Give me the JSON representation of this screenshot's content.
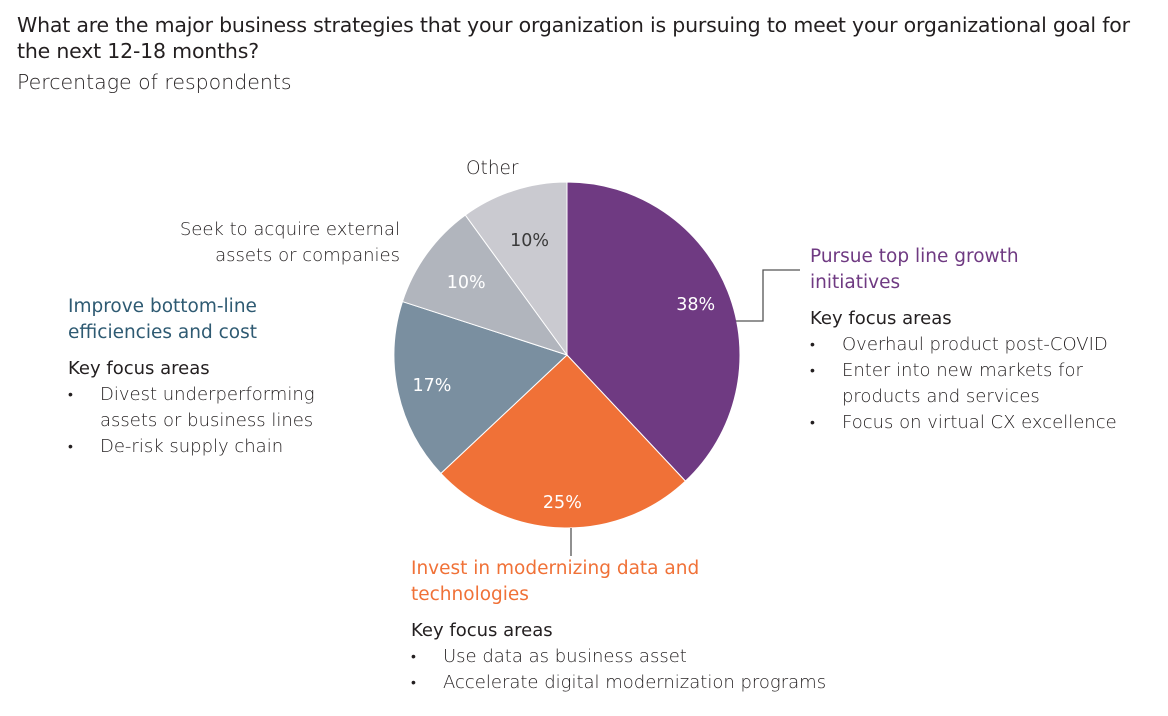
{
  "header": {
    "title": "What are the major business strategies that your organization is pursuing to meet your organizational goal for the next 12-18 months?",
    "subtitle": "Percentage of respondents"
  },
  "colors": {
    "purple": "#6f3a82",
    "orange": "#f07137",
    "slate": "#7a8fa0",
    "gray": "#b1b5bd",
    "light_gray": "#cacad0",
    "teal_heading": "#2e5a72"
  },
  "slices": [
    {
      "label": "Pursue top line growth initiatives",
      "pct_label": "38%"
    },
    {
      "label": "Invest in modernizing data and technologies",
      "pct_label": "25%"
    },
    {
      "label": "Improve bottom-line efficiencies and cost",
      "pct_label": "17%"
    },
    {
      "label": "Seek to acquire external assets or companies",
      "pct_label": "10%"
    },
    {
      "label": "Other",
      "pct_label": "10%"
    }
  ],
  "labels": {
    "other": "Other",
    "acquire_line1": "Seek to acquire external",
    "acquire_line2": "assets or companies"
  },
  "growth": {
    "heading_line1": "Pursue top line growth",
    "heading_line2": "initiatives",
    "kfa": "Key focus areas",
    "items": [
      "Overhaul product post-COVID",
      "Enter into new markets for products and services",
      "Focus on virtual CX excellence"
    ]
  },
  "bottomline": {
    "heading_line1": "Improve bottom-line",
    "heading_line2": "efficiencies and cost",
    "kfa": "Key focus areas",
    "items": [
      "Divest underperforming assets or business lines",
      "De-risk supply chain"
    ]
  },
  "modernize": {
    "heading_line1": "Invest in modernizing data and",
    "heading_line2": "technologies",
    "kfa": "Key focus areas",
    "items": [
      "Use data as business asset",
      "Accelerate digital modernization programs"
    ]
  },
  "chart_data": {
    "type": "pie",
    "title": "What are the major business strategies that your organization is pursuing to meet your organizational goal for the next 12-18 months?",
    "subtitle": "Percentage of respondents",
    "categories": [
      "Pursue top line growth initiatives",
      "Invest in modernizing data and technologies",
      "Improve bottom-line efficiencies and cost",
      "Seek to acquire external assets or companies",
      "Other"
    ],
    "values": [
      38,
      25,
      17,
      10,
      10
    ],
    "colors": [
      "#6f3a82",
      "#f07137",
      "#7a8fa0",
      "#b1b5bd",
      "#cacad0"
    ],
    "start_angle": "12 o'clock, clockwise",
    "legend": "none (direct labels)"
  }
}
